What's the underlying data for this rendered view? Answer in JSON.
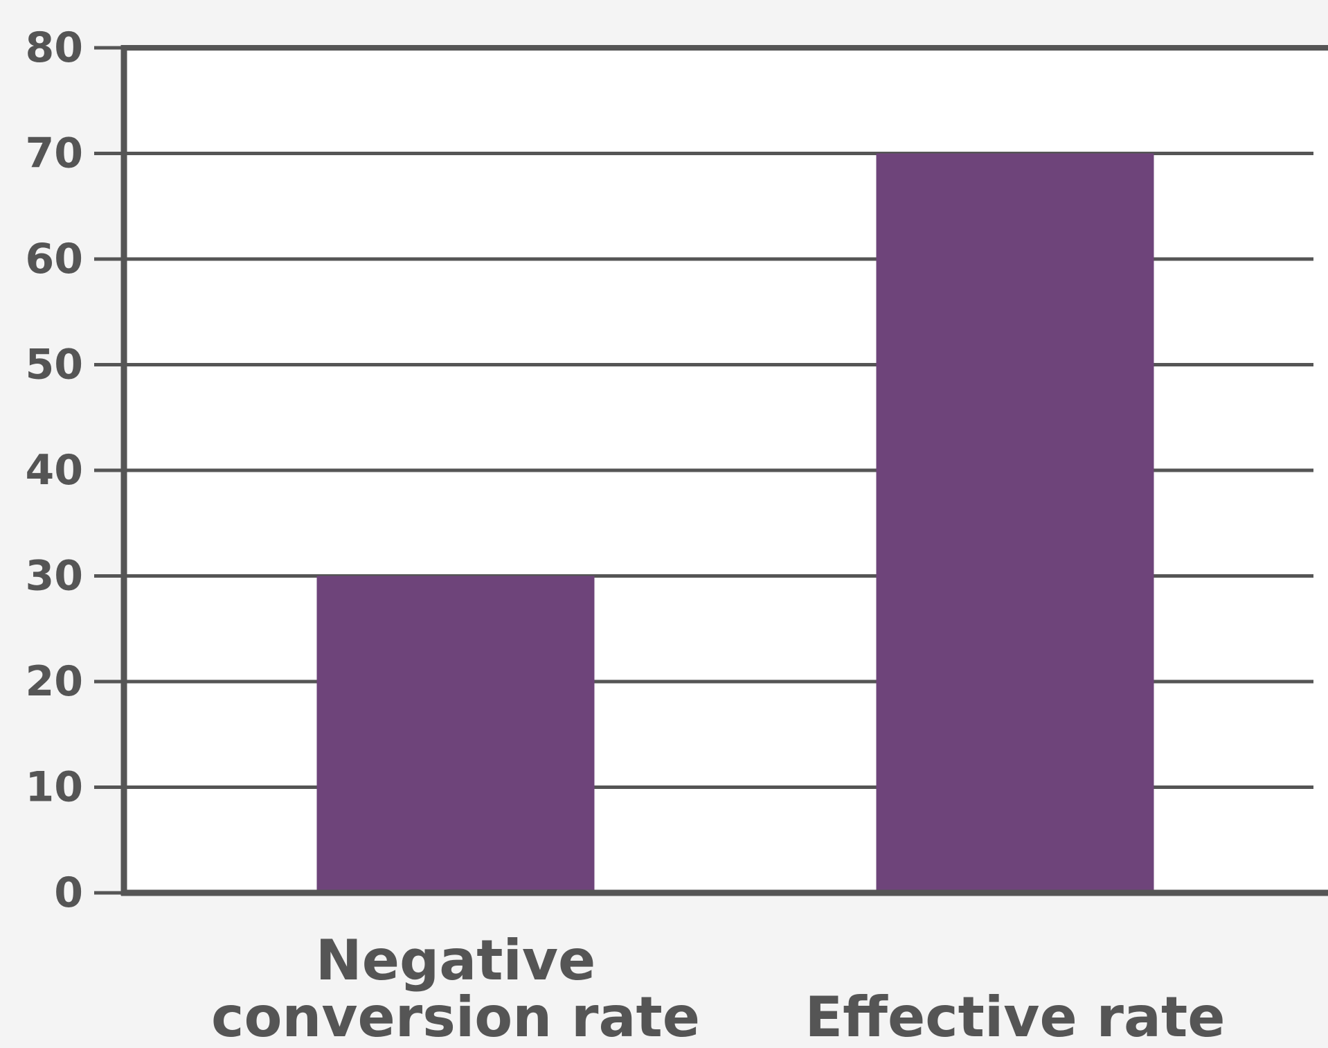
{
  "chart_data": {
    "type": "bar",
    "categories": [
      "Negative conversion rate",
      "Effective rate"
    ],
    "category_label_lines": [
      [
        "Negative",
        "conversion rate"
      ],
      [
        "Effective rate"
      ]
    ],
    "values": [
      30,
      70
    ],
    "ylim": [
      0,
      80
    ],
    "yticks": [
      0,
      10,
      20,
      30,
      40,
      50,
      60,
      70,
      80
    ],
    "title": "",
    "xlabel": "",
    "ylabel": "",
    "grid": true,
    "legend": "none",
    "colors": {
      "bar": "#6e447a",
      "axis": "#555555",
      "grid": "#555555",
      "plot_background": "#ffffff",
      "page_background": "#f4f4f4"
    }
  }
}
